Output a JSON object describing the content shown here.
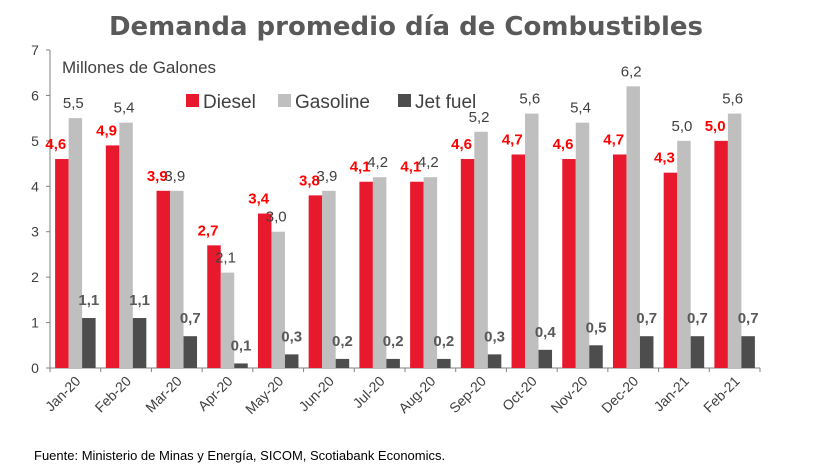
{
  "chart_data": {
    "type": "bar",
    "title": "Demanda promedio día de Combustibles",
    "ylabel": "Millones de Galones",
    "xlabel": "",
    "ylim": [
      0,
      7
    ],
    "yticks": [
      "0",
      "1",
      "2",
      "3",
      "4",
      "5",
      "6",
      "7"
    ],
    "categories": [
      "Jan-20",
      "Feb-20",
      "Mar-20",
      "Apr-20",
      "May-20",
      "Jun-20",
      "Jul-20",
      "Aug-20",
      "Sep-20",
      "Oct-20",
      "Nov-20",
      "Dec-20",
      "Jan-21",
      "Feb-21"
    ],
    "series": [
      {
        "name": "Diesel",
        "color": "#e8192c",
        "values": [
          4.6,
          4.9,
          3.9,
          2.7,
          3.4,
          3.8,
          4.1,
          4.1,
          4.6,
          4.7,
          4.6,
          4.7,
          4.3,
          5.0
        ],
        "labels": [
          "4,6",
          "4,9",
          "3,9",
          "2,7",
          "3,4",
          "3,8",
          "4,1",
          "4,1",
          "4,6",
          "4,7",
          "4,6",
          "4,7",
          "4,3",
          "5,0"
        ]
      },
      {
        "name": "Gasoline",
        "color": "#bfbfbf",
        "values": [
          5.5,
          5.4,
          3.9,
          2.1,
          3.0,
          3.9,
          4.2,
          4.2,
          5.2,
          5.6,
          5.4,
          6.2,
          5.0,
          5.6
        ],
        "labels": [
          "5,5",
          "5,4",
          "3,9",
          "2,1",
          "3,0",
          "3,9",
          "4,2",
          "4,2",
          "5,2",
          "5,6",
          "5,4",
          "6,2",
          "5,0",
          "5,6"
        ]
      },
      {
        "name": "Jet fuel",
        "color": "#4d4d4d",
        "values": [
          1.1,
          1.1,
          0.7,
          0.1,
          0.3,
          0.2,
          0.2,
          0.2,
          0.3,
          0.4,
          0.5,
          0.7,
          0.7,
          0.7
        ],
        "labels": [
          "1,1",
          "1,1",
          "0,7",
          "0,1",
          "0,3",
          "0,2",
          "0,2",
          "0,2",
          "0,3",
          "0,4",
          "0,5",
          "0,7",
          "0,7",
          "0,7"
        ]
      }
    ],
    "legend_position": "top-left",
    "grid": false,
    "source": "Fuente: Ministerio de Minas y Energía, SICOM, Scotiabank Economics."
  }
}
